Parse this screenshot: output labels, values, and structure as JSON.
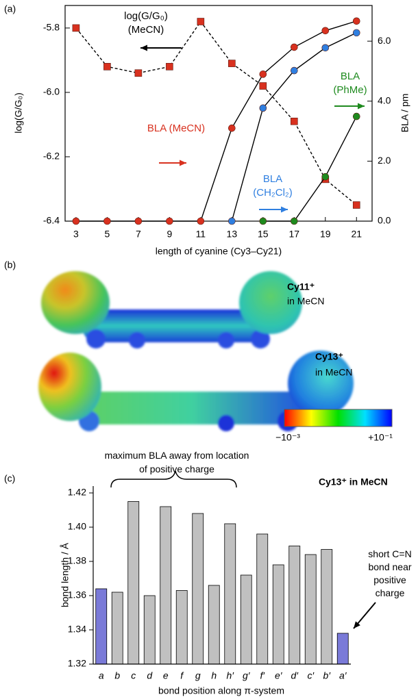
{
  "chart_data": [
    {
      "type": "line",
      "panel_label": "(a)",
      "x_label": "length of cyanine (Cy3–Cy21)",
      "y_label": "log(G/G₀)",
      "y2_label": "BLA / pm",
      "x": [
        3,
        5,
        7,
        9,
        11,
        13,
        15,
        17,
        19,
        21
      ],
      "xlim": [
        2.3,
        22
      ],
      "xticks": [
        3,
        5,
        7,
        9,
        11,
        13,
        15,
        17,
        19,
        21
      ],
      "ylim": [
        -6.4,
        -5.73
      ],
      "yticks": [
        -5.8,
        {
          "value": -6,
          "label": "-6.0"
        },
        -6.2,
        -6.4
      ],
      "y2lim": [
        0,
        7.19
      ],
      "y2ticks": [
        {
          "value": 0,
          "label": "0.0"
        },
        {
          "value": 2,
          "label": "2.0"
        },
        {
          "value": 4,
          "label": "4.0"
        },
        {
          "value": 6,
          "label": "6.0"
        }
      ],
      "line_color": "#000000",
      "series": [
        {
          "name": "log(G/G₀) (MeCN)",
          "color": "#d8311f",
          "marker": "square",
          "line_style": "dashed",
          "axis": "y",
          "values": [
            -5.8,
            -5.92,
            -5.94,
            -5.92,
            -5.78,
            -5.91,
            -5.98,
            -6.09,
            -6.27,
            -6.35
          ]
        },
        {
          "name": "BLA (MeCN)",
          "color": "#d8311f",
          "marker": "circle",
          "line_style": "solid",
          "axis": "y2",
          "values": [
            0,
            0,
            0,
            0,
            0,
            3.1,
            4.9,
            5.8,
            6.35,
            6.67
          ]
        },
        {
          "name": "BLA (CH₂Cl₂)",
          "color": "#2f7fe0",
          "marker": "circle",
          "line_style": "solid",
          "axis": "y2",
          "values": [
            null,
            null,
            null,
            null,
            null,
            0,
            3.77,
            5.02,
            5.78,
            6.28
          ]
        },
        {
          "name": "BLA (PhMe)",
          "color": "#1e8a1e",
          "marker": "circle",
          "line_style": "solid",
          "axis": "y2",
          "values": [
            null,
            null,
            null,
            null,
            null,
            null,
            0,
            0,
            1.48,
            3.49
          ]
        }
      ]
    },
    {
      "type": "bar",
      "panel_label": "(c)",
      "title": "Cy13⁺ in MeCN",
      "x_label": "bond position along π-system",
      "y_label": "bond length / Å",
      "categories": [
        "a",
        "b",
        "c",
        "d",
        "e",
        "f",
        "g",
        "h",
        "h′",
        "g′",
        "f′",
        "e′",
        "d′",
        "c′",
        "b′",
        "a′"
      ],
      "values": [
        1.364,
        1.362,
        1.415,
        1.36,
        1.412,
        1.363,
        1.408,
        1.366,
        1.402,
        1.372,
        1.396,
        1.378,
        1.389,
        1.384,
        1.387,
        1.338
      ],
      "colors": [
        "#7a7ad8",
        "#c0c0c0",
        "#c0c0c0",
        "#c0c0c0",
        "#c0c0c0",
        "#c0c0c0",
        "#c0c0c0",
        "#c0c0c0",
        "#c0c0c0",
        "#c0c0c0",
        "#c0c0c0",
        "#c0c0c0",
        "#c0c0c0",
        "#c0c0c0",
        "#c0c0c0",
        "#7a7ad8"
      ],
      "ylim": [
        1.32,
        1.424
      ],
      "yticks": [
        1.32,
        1.34,
        1.36,
        1.38,
        {
          "value": 1.4,
          "label": "1.40"
        },
        1.42
      ],
      "annotations": [
        "maximum BLA away from location of positive charge",
        "short C=N bond near positive charge"
      ]
    }
  ],
  "panel_b": {
    "panel_label": "(b)",
    "molecules": [
      {
        "name": "Cy11⁺",
        "solvent": "in MeCN"
      },
      {
        "name": "Cy13⁺",
        "solvent": "in MeCN"
      }
    ],
    "colorbar": {
      "min_label": "−10⁻³",
      "max_label": "+10⁻¹"
    }
  }
}
